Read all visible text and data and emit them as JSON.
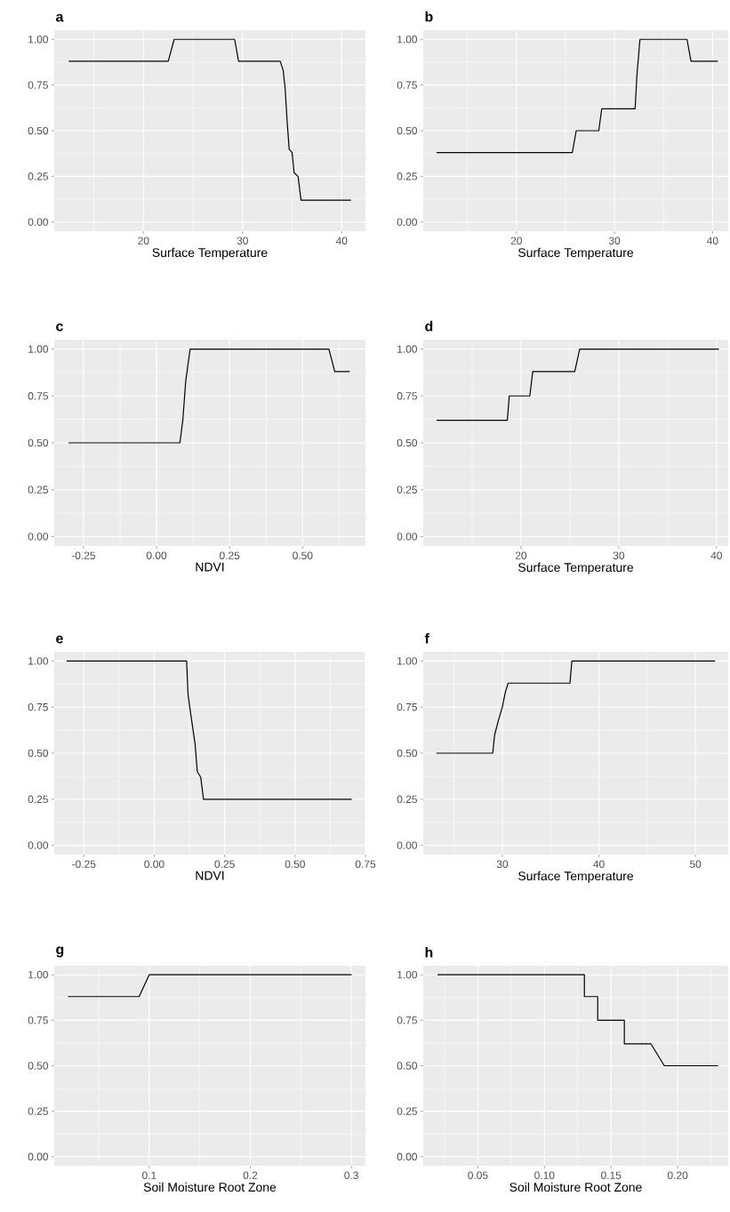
{
  "chart_data": [
    {
      "type": "line",
      "title": "a",
      "xlabel": "Surface Temperature",
      "xlim": [
        11.0,
        42.4
      ],
      "ylim": [
        -0.05,
        1.05
      ],
      "xticks": [
        20,
        30,
        40
      ],
      "yticks": [
        {
          "value": 0,
          "label": "0.00"
        },
        {
          "value": 0.25,
          "label": "0.25"
        },
        {
          "value": 0.5,
          "label": "0.50"
        },
        {
          "value": 0.75,
          "label": "0.75"
        },
        {
          "value": 1,
          "label": "1.00"
        }
      ],
      "grid": true,
      "series": [
        {
          "color": "#000000",
          "x": [
            12.5,
            22.5,
            23.1,
            29.2,
            29.6,
            33.8,
            34.1,
            34.3,
            34.5,
            34.7,
            35.0,
            35.2,
            35.6,
            35.9,
            40.9
          ],
          "values": [
            0.88,
            0.88,
            1,
            1,
            0.88,
            0.88,
            0.83,
            0.73,
            0.55,
            0.4,
            0.38,
            0.27,
            0.25,
            0.12,
            0.12
          ]
        }
      ]
    },
    {
      "type": "line",
      "title": "b",
      "xlabel": "Surface Temperature",
      "xlim": [
        10.5,
        41.6
      ],
      "ylim": [
        -0.05,
        1.05
      ],
      "xticks": [
        20,
        30,
        40
      ],
      "yticks": [
        {
          "value": 0,
          "label": "0.00"
        },
        {
          "value": 0.25,
          "label": "0.25"
        },
        {
          "value": 0.5,
          "label": "0.50"
        },
        {
          "value": 0.75,
          "label": "0.75"
        },
        {
          "value": 1,
          "label": "1.00"
        }
      ],
      "grid": true,
      "series": [
        {
          "color": "#000000",
          "x": [
            11.9,
            25.7,
            26.1,
            28.4,
            28.7,
            32.1,
            32.3,
            32.6,
            37.4,
            37.8,
            40.5
          ],
          "values": [
            0.38,
            0.38,
            0.5,
            0.5,
            0.62,
            0.62,
            0.81,
            1,
            1,
            0.88,
            0.88
          ]
        }
      ]
    },
    {
      "type": "line",
      "title": "c",
      "xlabel": "NDVI",
      "xlim": [
        -0.35,
        0.715
      ],
      "ylim": [
        -0.05,
        1.05
      ],
      "xticks": [
        -0.25,
        {
          "value": 0,
          "label": "0.00"
        },
        0.25,
        {
          "value": 0.5,
          "label": "0.50"
        }
      ],
      "yticks": [
        {
          "value": 0,
          "label": "0.00"
        },
        {
          "value": 0.25,
          "label": "0.25"
        },
        {
          "value": 0.5,
          "label": "0.50"
        },
        {
          "value": 0.75,
          "label": "0.75"
        },
        {
          "value": 1,
          "label": "1.00"
        }
      ],
      "grid": true,
      "series": [
        {
          "color": "#000000",
          "x": [
            -0.3,
            0.08,
            0.09,
            0.1,
            0.115,
            0.59,
            0.61,
            0.66
          ],
          "values": [
            0.5,
            0.5,
            0.62,
            0.83,
            1,
            1,
            0.88,
            0.88
          ]
        }
      ]
    },
    {
      "type": "line",
      "title": "d",
      "xlabel": "Surface Temperature",
      "xlim": [
        10.0,
        41.2
      ],
      "ylim": [
        -0.05,
        1.05
      ],
      "xticks": [
        20,
        30,
        40
      ],
      "yticks": [
        {
          "value": 0,
          "label": "0.00"
        },
        {
          "value": 0.25,
          "label": "0.25"
        },
        {
          "value": 0.5,
          "label": "0.50"
        },
        {
          "value": 0.75,
          "label": "0.75"
        },
        {
          "value": 1,
          "label": "1.00"
        }
      ],
      "grid": true,
      "series": [
        {
          "color": "#000000",
          "x": [
            11.4,
            18.6,
            18.8,
            20.9,
            21.2,
            25.5,
            26.0,
            40.2
          ],
          "values": [
            0.62,
            0.62,
            0.75,
            0.75,
            0.88,
            0.88,
            1,
            1
          ]
        }
      ]
    },
    {
      "type": "line",
      "title": "e",
      "xlabel": "NDVI",
      "xlim": [
        -0.355,
        0.75
      ],
      "ylim": [
        -0.05,
        1.05
      ],
      "xticks": [
        -0.25,
        {
          "value": 0,
          "label": "0.00"
        },
        0.25,
        {
          "value": 0.5,
          "label": "0.50"
        },
        0.75
      ],
      "yticks": [
        {
          "value": 0,
          "label": "0.00"
        },
        {
          "value": 0.25,
          "label": "0.25"
        },
        {
          "value": 0.5,
          "label": "0.50"
        },
        {
          "value": 0.75,
          "label": "0.75"
        },
        {
          "value": 1,
          "label": "1.00"
        }
      ],
      "grid": true,
      "series": [
        {
          "color": "#000000",
          "x": [
            -0.31,
            0.115,
            0.12,
            0.128,
            0.145,
            0.153,
            0.165,
            0.175,
            0.7
          ],
          "values": [
            1,
            1,
            0.82,
            0.73,
            0.55,
            0.4,
            0.37,
            0.25,
            0.25
          ]
        }
      ]
    },
    {
      "type": "line",
      "title": "f",
      "xlabel": "Surface Temperature",
      "xlim": [
        21.8,
        53.4
      ],
      "ylim": [
        -0.05,
        1.05
      ],
      "xticks": [
        30,
        40,
        50
      ],
      "yticks": [
        {
          "value": 0,
          "label": "0.00"
        },
        {
          "value": 0.25,
          "label": "0.25"
        },
        {
          "value": 0.5,
          "label": "0.50"
        },
        {
          "value": 0.75,
          "label": "0.75"
        },
        {
          "value": 1,
          "label": "1.00"
        }
      ],
      "grid": true,
      "series": [
        {
          "color": "#000000",
          "x": [
            23.2,
            29.0,
            29.2,
            29.6,
            30.0,
            30.3,
            30.6,
            37.0,
            37.2,
            52.0
          ],
          "values": [
            0.5,
            0.5,
            0.6,
            0.68,
            0.75,
            0.83,
            0.88,
            0.88,
            1,
            1
          ]
        }
      ]
    },
    {
      "type": "line",
      "title": "g",
      "xlabel": "Soil Moisture Root Zone",
      "xlim": [
        0.006,
        0.314
      ],
      "ylim": [
        -0.05,
        1.05
      ],
      "xticks": [
        0.1,
        0.2,
        0.3
      ],
      "yticks": [
        {
          "value": 0,
          "label": "0.00"
        },
        {
          "value": 0.25,
          "label": "0.25"
        },
        {
          "value": 0.5,
          "label": "0.50"
        },
        {
          "value": 0.75,
          "label": "0.75"
        },
        {
          "value": 1,
          "label": "1.00"
        }
      ],
      "grid": true,
      "series": [
        {
          "color": "#000000",
          "x": [
            0.02,
            0.09,
            0.1,
            0.3
          ],
          "values": [
            0.88,
            0.88,
            1,
            1
          ]
        }
      ]
    },
    {
      "type": "line",
      "title": "h",
      "xlabel": "Soil Moisture Root Zone",
      "xlim": [
        0.009,
        0.238
      ],
      "ylim": [
        -0.05,
        1.05
      ],
      "xticks": [
        0.05,
        {
          "value": 0.1,
          "label": "0.10"
        },
        0.15,
        {
          "value": 0.2,
          "label": "0.20"
        }
      ],
      "yticks": [
        {
          "value": 0,
          "label": "0.00"
        },
        {
          "value": 0.25,
          "label": "0.25"
        },
        {
          "value": 0.5,
          "label": "0.50"
        },
        {
          "value": 0.75,
          "label": "0.75"
        },
        {
          "value": 1,
          "label": "1.00"
        }
      ],
      "grid": true,
      "series": [
        {
          "color": "#000000",
          "x": [
            0.02,
            0.13,
            0.13,
            0.14,
            0.14,
            0.16,
            0.16,
            0.18,
            0.19,
            0.23
          ],
          "values": [
            1,
            1,
            0.88,
            0.88,
            0.75,
            0.75,
            0.62,
            0.62,
            0.5,
            0.5
          ]
        }
      ]
    }
  ]
}
